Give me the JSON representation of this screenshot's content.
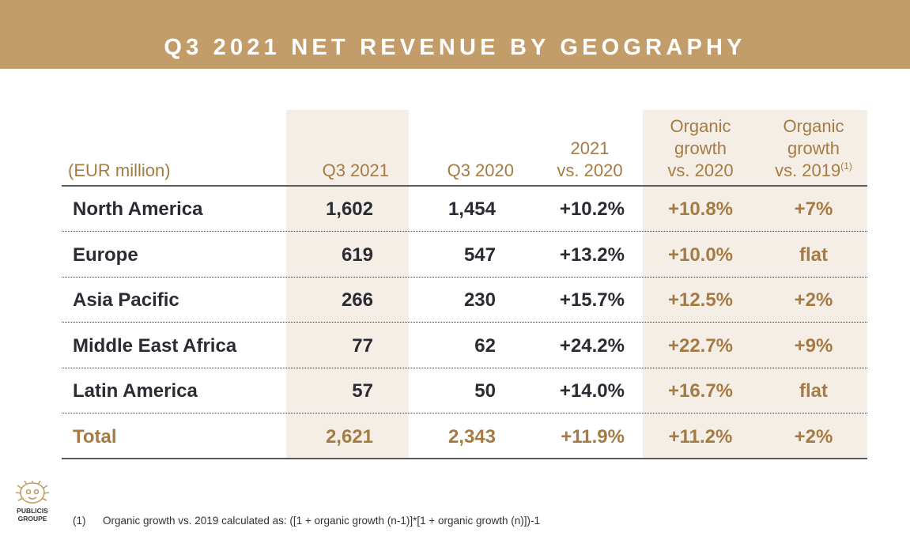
{
  "header": {
    "title": "Q3 2021 NET REVENUE BY GEOGRAPHY"
  },
  "table": {
    "unit_label": "(EUR million)",
    "columns": [
      {
        "lines": [
          "Q3 2021"
        ]
      },
      {
        "lines": [
          "Q3 2020"
        ]
      },
      {
        "lines": [
          "2021",
          "vs. 2020"
        ]
      },
      {
        "lines": [
          "Organic",
          "growth",
          "vs. 2020"
        ]
      },
      {
        "lines": [
          "Organic",
          "growth",
          "vs. 2019"
        ],
        "footnote_ref": "(1)"
      }
    ],
    "rows": [
      {
        "region": "North America",
        "q3_2021": "1,602",
        "q3_2020": "1,454",
        "change": "+10.2%",
        "organic_2020": "+10.8%",
        "organic_2019": "+7%"
      },
      {
        "region": "Europe",
        "q3_2021": "619",
        "q3_2020": "547",
        "change": "+13.2%",
        "organic_2020": "+10.0%",
        "organic_2019": "flat"
      },
      {
        "region": "Asia Pacific",
        "q3_2021": "266",
        "q3_2020": "230",
        "change": "+15.7%",
        "organic_2020": "+12.5%",
        "organic_2019": "+2%"
      },
      {
        "region": "Middle East Africa",
        "q3_2021": "77",
        "q3_2020": "62",
        "change": "+24.2%",
        "organic_2020": "+22.7%",
        "organic_2019": "+9%"
      },
      {
        "region": "Latin America",
        "q3_2021": "57",
        "q3_2020": "50",
        "change": "+14.0%",
        "organic_2020": "+16.7%",
        "organic_2019": "flat"
      }
    ],
    "total": {
      "region": "Total",
      "q3_2021": "2,621",
      "q3_2020": "2,343",
      "change": "+11.9%",
      "organic_2020": "+11.2%",
      "organic_2019": "+2%"
    }
  },
  "footer": {
    "logo_line1": "PUBLICIS",
    "logo_line2": "GROUPE",
    "footnote_marker": "(1)",
    "footnote_text": "Organic growth vs. 2019 calculated as: ([1 + organic growth (n-1)]*[1 + organic growth (n)])-1"
  },
  "colors": {
    "brand_gold": "#c39d69",
    "text_gold": "#a57b44",
    "shade": "#f5eee6",
    "text_dark": "#2a2b33"
  }
}
